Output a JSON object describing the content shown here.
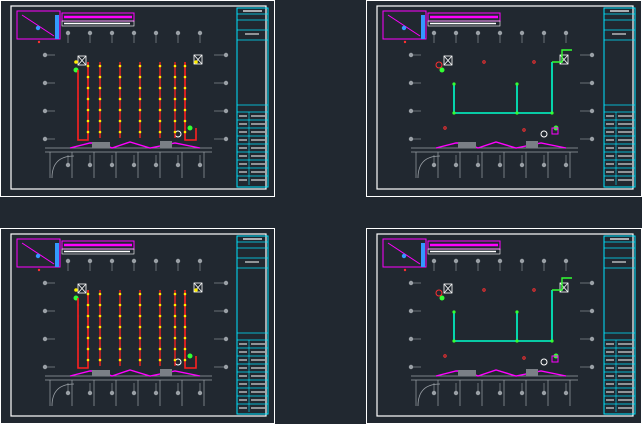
{
  "drawing": {
    "sheets": [
      {
        "name": "sheet-top-left",
        "variant": "sprinkler"
      },
      {
        "name": "sheet-top-right",
        "variant": "pipe"
      },
      {
        "name": "sheet-bottom-left",
        "variant": "sprinkler"
      },
      {
        "name": "sheet-bottom-right",
        "variant": "pipe"
      }
    ]
  },
  "colors": {
    "background": "#212830",
    "frame": "#ffffff",
    "title_block": "#00e5ff",
    "header_box": "#ff00ff",
    "grid": "#9aa0a6",
    "sprinkler_pipe": "#ff2020",
    "head_yellow": "#ffee00",
    "head_green": "#33ff33",
    "main_pipe": "#00ffcc",
    "duct": "#ff00ff",
    "marker_red": "#ff3030"
  }
}
